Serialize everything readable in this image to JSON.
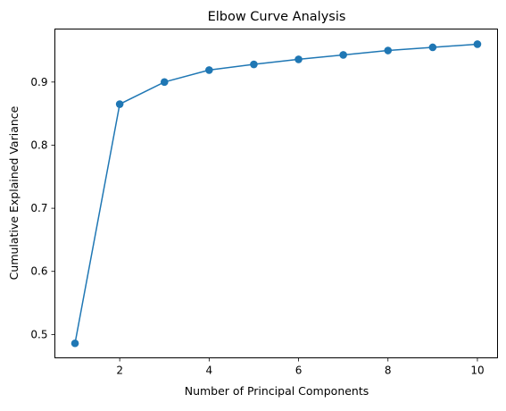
{
  "chart_data": {
    "type": "line",
    "title": "Elbow Curve Analysis",
    "xlabel": "Number of Principal Components",
    "ylabel": "Cumulative Explained Variance",
    "xlim": [
      0.55,
      10.45
    ],
    "ylim": [
      0.463,
      0.984
    ],
    "xticks": [
      2,
      4,
      6,
      8,
      10
    ],
    "yticks": [
      0.5,
      0.6,
      0.7,
      0.8,
      0.9
    ],
    "grid": false,
    "legend": "none",
    "series": [
      {
        "color": "#1f77b4",
        "marker": "circle",
        "x": [
          1,
          2,
          3,
          4,
          5,
          6,
          7,
          8,
          9,
          10
        ],
        "y": [
          0.486,
          0.865,
          0.9,
          0.919,
          0.928,
          0.936,
          0.943,
          0.95,
          0.955,
          0.96
        ]
      }
    ]
  }
}
